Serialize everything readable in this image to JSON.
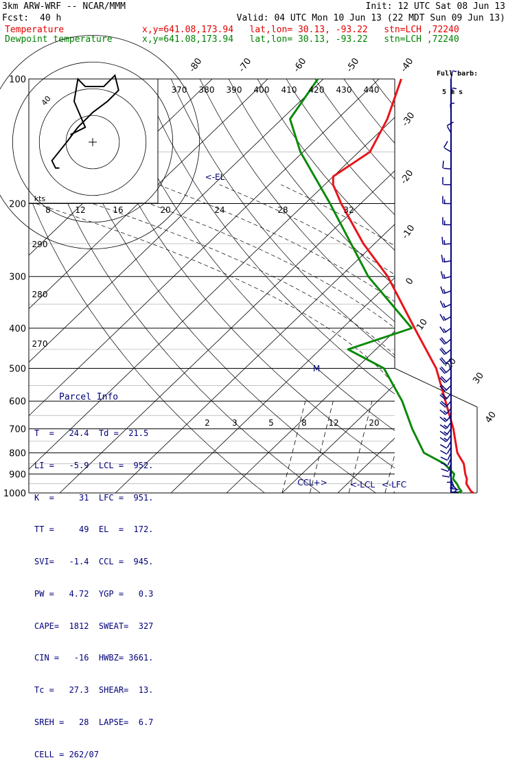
{
  "header": {
    "model": "3km ARW-WRF -- NCAR/MMM",
    "init": "Init: 12 UTC Sat 08 Jun 13",
    "fcst_label": "Fcst:",
    "fcst_value": "40 h",
    "valid": "Valid: 04 UTC Mon 10 Jun 13 (22 MDT Sun 09 Jun 13)",
    "temp_label": "Temperature",
    "dew_label": "Dewpoint temperature",
    "location": "x,y=641.08,173.94   lat,lon= 30.13, -93.22   stn=LCH ,72240"
  },
  "barb_legend": {
    "line1": "Full barb:",
    "line2": "5 m s"
  },
  "parcel_info": {
    "title": "Parcel Info",
    "rows": [
      "T  =   24.4  Td =  21.5",
      "LI =   -5.9  LCL =  952.",
      "K  =     31  LFC =  951.",
      "TT =     49  EL  =  172.",
      "SVI=   -1.4  CCL =  945.",
      "PW =   4.72  YGP =   0.3",
      "CAPE=  1812  SWEAT=  327",
      "CIN =   -16  HWBZ= 3661.",
      "Tc =   27.3  SHEAR=  13.",
      "SREH =   28  LAPSE=  6.7",
      "CELL = 262/07"
    ]
  },
  "chart_data": {
    "type": "line",
    "diagram": "skew-T log-p",
    "pressure_levels": [
      100,
      200,
      300,
      400,
      500,
      600,
      700,
      800,
      900,
      1000
    ],
    "temperature_isotherm_labels": [
      "-80",
      "-70",
      "-60",
      "-50",
      "-40",
      "-30",
      "-20",
      "-10",
      "0",
      "10",
      "20",
      "30",
      "40"
    ],
    "theta_labels": [
      "370",
      "380",
      "390",
      "400",
      "410",
      "420",
      "430",
      "440"
    ],
    "theta_low_labels": [
      "290",
      "280",
      "270"
    ],
    "mixing_ratio_labels": [
      "2",
      "3",
      "5",
      "8",
      "12",
      "20"
    ],
    "hodograph_ring_labels": [
      "8",
      "12",
      "16",
      "20",
      "24",
      "28",
      "32"
    ],
    "hodograph_units": "kts",
    "hodograph_ring_label": "40",
    "annotations": {
      "el": "<-EL",
      "ccl": "CCL+>",
      "lcl": "<-LCL",
      "lfc": "<-LFC",
      "marker": "M"
    },
    "series": [
      {
        "name": "Temperature",
        "color": "#e8141a",
        "points": [
          [
            1000,
            24.4
          ],
          [
            990,
            23.6
          ],
          [
            975,
            22.8
          ],
          [
            950,
            21.4
          ],
          [
            925,
            20.6
          ],
          [
            900,
            19.4
          ],
          [
            850,
            17.2
          ],
          [
            800,
            14.0
          ],
          [
            700,
            8.8
          ],
          [
            600,
            2.2
          ],
          [
            500,
            -5.6
          ],
          [
            400,
            -17.0
          ],
          [
            300,
            -31.5
          ],
          [
            250,
            -42.0
          ],
          [
            200,
            -53.5
          ],
          [
            180,
            -58.5
          ],
          [
            172,
            -60.0
          ],
          [
            150,
            -58.0
          ],
          [
            125,
            -61.0
          ],
          [
            100,
            -66.0
          ]
        ]
      },
      {
        "name": "Dewpoint temperature",
        "color": "#0a8a0a",
        "points": [
          [
            1000,
            21.5
          ],
          [
            990,
            21.9
          ],
          [
            975,
            21.0
          ],
          [
            950,
            19.7
          ],
          [
            925,
            18.1
          ],
          [
            900,
            17.4
          ],
          [
            850,
            13.7
          ],
          [
            800,
            8.0
          ],
          [
            700,
            1.4
          ],
          [
            600,
            -5.6
          ],
          [
            500,
            -15.0
          ],
          [
            450,
            -25.0
          ],
          [
            400,
            -17.5
          ],
          [
            300,
            -35.0
          ],
          [
            200,
            -55.5
          ],
          [
            150,
            -70.5
          ],
          [
            125,
            -78.5
          ],
          [
            100,
            -81.0
          ]
        ]
      }
    ],
    "hodograph": {
      "color": "#000000",
      "points_kts": [
        [
          -6,
          2
        ],
        [
          -2,
          4
        ],
        [
          -5,
          11
        ],
        [
          -4,
          17
        ],
        [
          -2,
          15
        ],
        [
          3,
          15
        ],
        [
          6,
          18
        ],
        [
          7,
          14
        ],
        [
          4,
          11
        ],
        [
          0,
          8
        ],
        [
          -4,
          4
        ],
        [
          -7,
          0
        ],
        [
          -11,
          -5
        ],
        [
          -10,
          -7
        ],
        [
          -9,
          -7
        ]
      ]
    },
    "wind_profile": {
      "unit": "m s-1",
      "barbs": [
        [
          995,
          1.5,
          90
        ],
        [
          975,
          2,
          100
        ],
        [
          950,
          2.5,
          135
        ],
        [
          925,
          3,
          160
        ],
        [
          900,
          4,
          180
        ],
        [
          875,
          5,
          190
        ],
        [
          850,
          6,
          200
        ],
        [
          825,
          6,
          205
        ],
        [
          800,
          6.5,
          205
        ],
        [
          775,
          6.5,
          210
        ],
        [
          750,
          7,
          210
        ],
        [
          725,
          7.5,
          215
        ],
        [
          700,
          8,
          215
        ],
        [
          675,
          8,
          215
        ],
        [
          650,
          8.5,
          220
        ],
        [
          625,
          9,
          220
        ],
        [
          600,
          10,
          220
        ],
        [
          575,
          10,
          220
        ],
        [
          550,
          11,
          225
        ],
        [
          525,
          11,
          225
        ],
        [
          500,
          11,
          230
        ],
        [
          475,
          11,
          230
        ],
        [
          450,
          10,
          230
        ],
        [
          425,
          10,
          230
        ],
        [
          400,
          9,
          235
        ],
        [
          375,
          9,
          240
        ],
        [
          350,
          9,
          245
        ],
        [
          325,
          9,
          250
        ],
        [
          300,
          9,
          255
        ],
        [
          275,
          9,
          260
        ],
        [
          250,
          8,
          265
        ],
        [
          225,
          8,
          270
        ],
        [
          200,
          8,
          270
        ],
        [
          180,
          7,
          270
        ],
        [
          165,
          6,
          275
        ],
        [
          150,
          5,
          300
        ],
        [
          135,
          5,
          330
        ],
        [
          120,
          4,
          355
        ],
        [
          110,
          3,
          10
        ],
        [
          100,
          3,
          10
        ]
      ]
    }
  }
}
